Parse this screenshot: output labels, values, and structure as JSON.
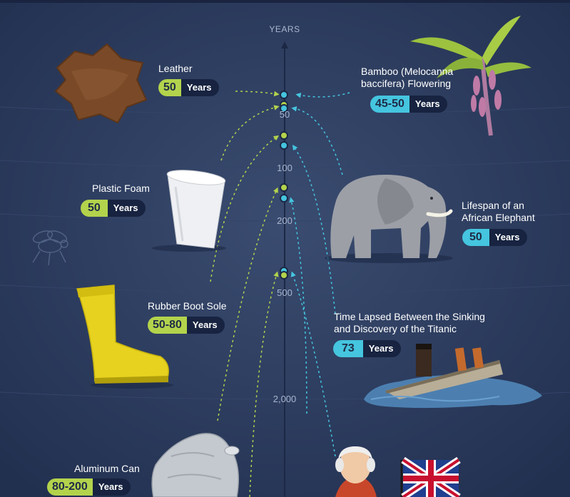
{
  "axis": {
    "title": "YEARS",
    "ticks": [
      "50",
      "100",
      "200",
      "500",
      "2,000"
    ]
  },
  "items": {
    "leather": {
      "label": "Leather",
      "value": "50",
      "unit": "Years"
    },
    "bamboo": {
      "label_line1": "Bamboo (Melocanna",
      "label_line2": "baccifera) Flowering",
      "value": "45-50",
      "unit": "Years"
    },
    "plastic_foam": {
      "label": "Plastic Foam",
      "value": "50",
      "unit": "Years"
    },
    "elephant": {
      "label_line1": "Lifespan of an",
      "label_line2": "African Elephant",
      "value": "50",
      "unit": "Years"
    },
    "rubber_boot": {
      "label": "Rubber Boot Sole",
      "value": "50-80",
      "unit": "Years"
    },
    "titanic": {
      "label_line1": "Time Lapsed Between the Sinking",
      "label_line2": "and Discovery of the Titanic",
      "value": "73",
      "unit": "Years"
    },
    "aluminum_can": {
      "label": "Aluminum Can",
      "value": "80-200",
      "unit": "Years"
    }
  },
  "colors": {
    "background": "#2b3a5a",
    "green": "#b3d34c",
    "cyan": "#45c5df",
    "badge_dark": "#172340"
  },
  "icons": [
    "leather-icon",
    "bamboo-icon",
    "foam-cup-icon",
    "elephant-icon",
    "fly-icon",
    "rubber-boot-icon",
    "titanic-icon",
    "aluminum-can-icon",
    "portrait-icon",
    "union-jack-icon"
  ]
}
